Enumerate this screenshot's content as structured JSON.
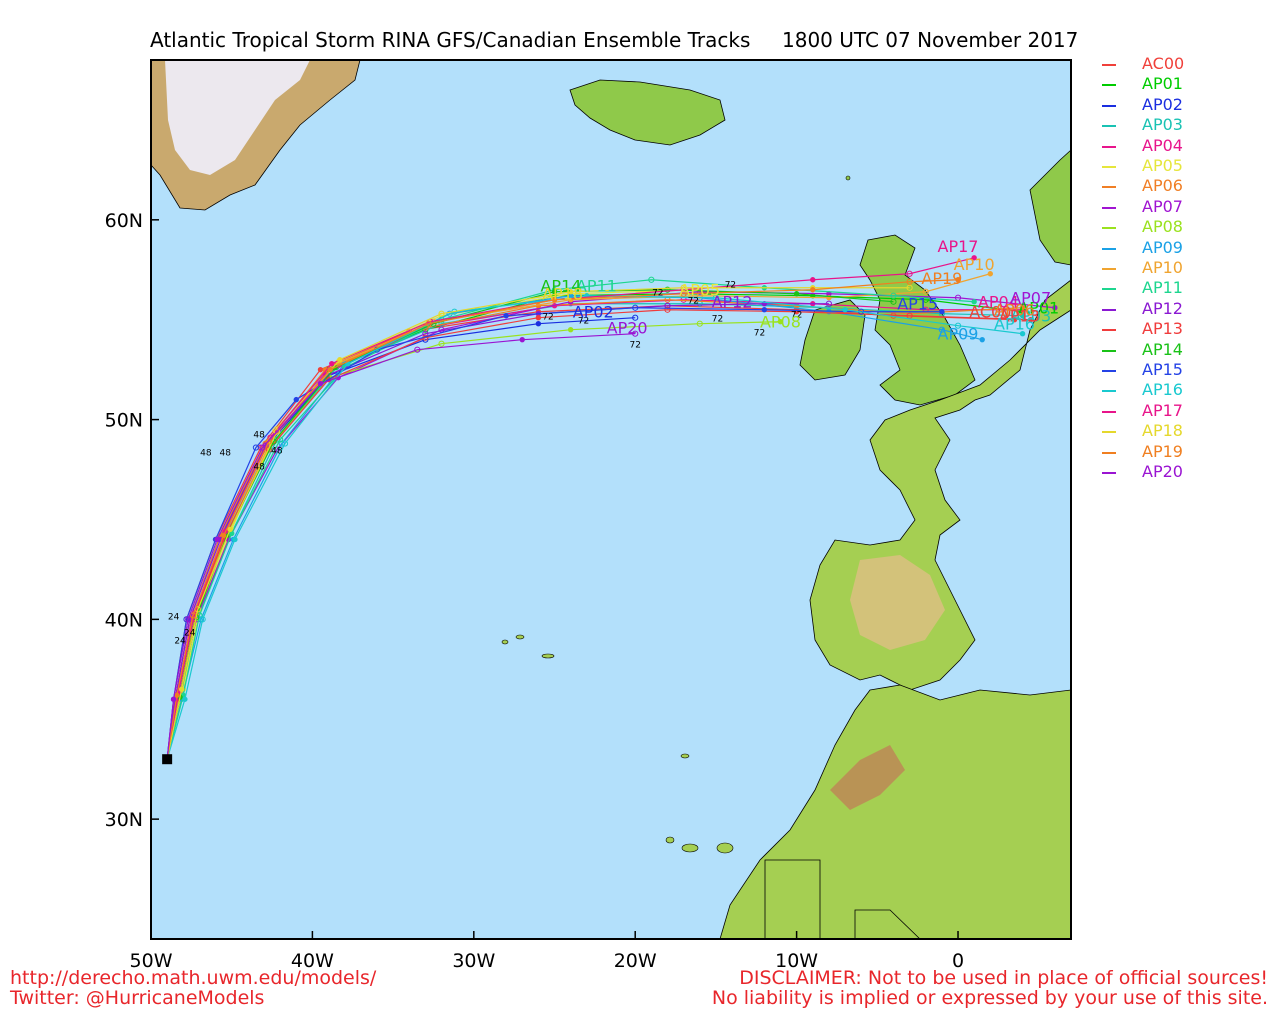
{
  "title": {
    "left": "Atlantic Tropical Storm RINA GFS/Canadian Ensemble Tracks",
    "right": "1800 UTC 07 November 2017"
  },
  "map": {
    "lon_range": [
      -50,
      7
    ],
    "lat_range": [
      24,
      68
    ],
    "ocean_color": "#b3e0fb",
    "x_ticks": [
      {
        "lon": -50,
        "label": "50W"
      },
      {
        "lon": -40,
        "label": "40W"
      },
      {
        "lon": -30,
        "label": "30W"
      },
      {
        "lon": -20,
        "label": "20W"
      },
      {
        "lon": -10,
        "label": "10W"
      },
      {
        "lon": 0,
        "label": "0"
      }
    ],
    "y_ticks": [
      {
        "lat": 30,
        "label": "30N"
      },
      {
        "lat": 40,
        "label": "40N"
      },
      {
        "lat": 50,
        "label": "50N"
      },
      {
        "lat": 60,
        "label": "60N"
      }
    ]
  },
  "tracks": [
    {
      "name": "AC00",
      "color": "#f0403a",
      "points": [
        [
          -49,
          33
        ],
        [
          -48.6,
          36
        ],
        [
          -47.8,
          40
        ],
        [
          -46,
          44
        ],
        [
          -43.2,
          48.6
        ],
        [
          -39.5,
          52.5
        ],
        [
          -34,
          54.4
        ],
        [
          -26,
          55.4
        ],
        [
          -18,
          55.7
        ],
        [
          -10,
          55.5
        ],
        [
          -4,
          55.2
        ],
        [
          3.5,
          55.0
        ]
      ],
      "label_at": [
        2,
        55.4
      ]
    },
    {
      "name": "AP01",
      "color": "#00cc00",
      "points": [
        [
          -49,
          33
        ],
        [
          -48.3,
          36
        ],
        [
          -47.3,
          40
        ],
        [
          -45.5,
          44
        ],
        [
          -42.5,
          49
        ],
        [
          -39,
          52.5
        ],
        [
          -33,
          54.5
        ],
        [
          -25,
          56.2
        ],
        [
          -17,
          56.3
        ],
        [
          -9,
          56.2
        ],
        [
          -2,
          56.0
        ],
        [
          4,
          55.4
        ]
      ],
      "label_at": [
        5,
        55.6
      ]
    },
    {
      "name": "AP02",
      "color": "#1a2ee0",
      "points": [
        [
          -49,
          33
        ],
        [
          -48.5,
          36
        ],
        [
          -47.6,
          40
        ],
        [
          -45.8,
          44
        ],
        [
          -43,
          48.5
        ],
        [
          -39,
          52.2
        ],
        [
          -33,
          54.0
        ],
        [
          -26,
          54.8
        ],
        [
          -20,
          55.1
        ]
      ],
      "label_at": [
        -22.6,
        55.4
      ]
    },
    {
      "name": "AP03",
      "color": "#19c2b3",
      "points": [
        [
          -49,
          33
        ],
        [
          -48.2,
          36
        ],
        [
          -47.1,
          40
        ],
        [
          -45.2,
          44
        ],
        [
          -42.2,
          49
        ],
        [
          -38.5,
          52.6
        ],
        [
          -32,
          54.8
        ],
        [
          -24,
          55.8
        ],
        [
          -16,
          55.8
        ],
        [
          -8,
          55.6
        ],
        [
          -1,
          55.3
        ],
        [
          4,
          55.2
        ]
      ],
      "label_at": [
        4.5,
        55.2
      ]
    },
    {
      "name": "AP04",
      "color": "#e8158c",
      "points": [
        [
          -49,
          33
        ],
        [
          -48.4,
          36
        ],
        [
          -47.5,
          40
        ],
        [
          -45.6,
          44
        ],
        [
          -42.8,
          48.7
        ],
        [
          -39.2,
          52.3
        ],
        [
          -33,
          54.6
        ],
        [
          -25,
          55.7
        ],
        [
          -17,
          56.0
        ],
        [
          -9,
          55.8
        ],
        [
          -2,
          55.5
        ],
        [
          4,
          55.5
        ]
      ],
      "label_at": [
        2.5,
        55.9
      ]
    },
    {
      "name": "AP05",
      "color": "#e6e63c",
      "points": [
        [
          -49,
          33
        ],
        [
          -48,
          36.5
        ],
        [
          -47,
          40.5
        ],
        [
          -45,
          44.5
        ],
        [
          -42.3,
          49.5
        ],
        [
          -38.4,
          52.9
        ],
        [
          -32,
          55.2
        ],
        [
          -24,
          56.3
        ],
        [
          -16,
          56.5
        ]
      ],
      "label_at": [
        -16,
        56.5
      ]
    },
    {
      "name": "AP06",
      "color": "#f07f25",
      "points": [
        [
          -49,
          33
        ],
        [
          -48.5,
          36
        ],
        [
          -47.6,
          40
        ],
        [
          -45.7,
          44.2
        ],
        [
          -42.9,
          48.8
        ],
        [
          -39.2,
          52.5
        ],
        [
          -33,
          54.6
        ],
        [
          -26,
          55.7
        ],
        [
          -18,
          56.0
        ],
        [
          -10,
          55.7
        ],
        [
          -3,
          55.3
        ],
        [
          4,
          55.6
        ]
      ],
      "label_at": [
        3.5,
        55.5
      ]
    },
    {
      "name": "AP07",
      "color": "#a014d2",
      "points": [
        [
          -49,
          33
        ],
        [
          -48.3,
          36
        ],
        [
          -47.2,
          40
        ],
        [
          -45.2,
          44
        ],
        [
          -42.2,
          48.5
        ],
        [
          -38.4,
          52.1
        ],
        [
          -32,
          54.5
        ],
        [
          -24,
          55.9
        ],
        [
          -16,
          56.4
        ],
        [
          -8,
          56.3
        ],
        [
          0,
          56.1
        ],
        [
          6,
          55.6
        ]
      ],
      "label_at": [
        4.5,
        56.1
      ]
    },
    {
      "name": "AP08",
      "color": "#9ae21e",
      "points": [
        [
          -49,
          33
        ],
        [
          -48.4,
          36
        ],
        [
          -47.4,
          40
        ],
        [
          -45.5,
          44
        ],
        [
          -42.7,
          48.6
        ],
        [
          -38.9,
          52.1
        ],
        [
          -32,
          53.8
        ],
        [
          -24,
          54.5
        ],
        [
          -16,
          54.8
        ],
        [
          -11,
          54.9
        ]
      ],
      "label_at": [
        -11,
        54.9
      ]
    },
    {
      "name": "AP09",
      "color": "#1ba1e6",
      "points": [
        [
          -49,
          33
        ],
        [
          -48.1,
          36
        ],
        [
          -46.9,
          40
        ],
        [
          -44.9,
          44
        ],
        [
          -41.9,
          48.8
        ],
        [
          -38,
          52.8
        ],
        [
          -31.5,
          55.3
        ],
        [
          -24,
          56.2
        ],
        [
          -16,
          56.1
        ],
        [
          -8,
          55.4
        ],
        [
          -1,
          54.5
        ],
        [
          1.5,
          54.0
        ]
      ],
      "label_at": [
        0.0,
        54.3
      ]
    },
    {
      "name": "AP10",
      "color": "#f0a430",
      "points": [
        [
          -49,
          33
        ],
        [
          -48.2,
          36.3
        ],
        [
          -47.2,
          40.3
        ],
        [
          -45.3,
          44.3
        ],
        [
          -42.5,
          49
        ],
        [
          -38.7,
          52.7
        ],
        [
          -32.5,
          54.9
        ],
        [
          -24,
          56.0
        ],
        [
          -16,
          56.2
        ],
        [
          -8,
          56.1
        ],
        [
          -2,
          56.4
        ],
        [
          2,
          57.3
        ]
      ],
      "label_at": [
        1.0,
        57.8
      ]
    },
    {
      "name": "AP11",
      "color": "#1dd68f",
      "points": [
        [
          -49,
          33
        ],
        [
          -48,
          36.2
        ],
        [
          -47,
          40.2
        ],
        [
          -45,
          44.3
        ],
        [
          -42,
          49
        ],
        [
          -38,
          52.6
        ],
        [
          -32,
          55.0
        ],
        [
          -25,
          56.5
        ],
        [
          -19,
          57.0
        ],
        [
          -12,
          56.6
        ],
        [
          -4,
          56.2
        ],
        [
          1,
          55.9
        ]
      ],
      "label_at": [
        -22.4,
        56.7
      ]
    },
    {
      "name": "AP12",
      "color": "#8a19d2",
      "points": [
        [
          -49,
          33
        ],
        [
          -48.5,
          36
        ],
        [
          -47.6,
          40
        ],
        [
          -45.7,
          44
        ],
        [
          -42.9,
          48.7
        ],
        [
          -39.1,
          52.2
        ],
        [
          -33,
          54.3
        ],
        [
          -26,
          55.3
        ],
        [
          -18,
          55.7
        ],
        [
          -12,
          55.8
        ],
        [
          -8,
          55.8
        ]
      ],
      "label_at": [
        -14,
        55.9
      ]
    },
    {
      "name": "AP13",
      "color": "#f03c3c",
      "points": [
        [
          -49,
          33
        ],
        [
          -48.4,
          36
        ],
        [
          -47.4,
          40
        ],
        [
          -45.5,
          44
        ],
        [
          -42.7,
          48.5
        ],
        [
          -39,
          52
        ],
        [
          -33,
          54.1
        ],
        [
          -26,
          55.1
        ],
        [
          -18,
          55.5
        ],
        [
          -10,
          55.4
        ],
        [
          -3,
          55.2
        ],
        [
          4.5,
          55.0
        ]
      ],
      "label_at": [
        3.8,
        55.2
      ]
    },
    {
      "name": "AP14",
      "color": "#19c217",
      "points": [
        [
          -49,
          33
        ],
        [
          -48.2,
          36.1
        ],
        [
          -47.2,
          40.1
        ],
        [
          -45.3,
          44.2
        ],
        [
          -42.4,
          48.9
        ],
        [
          -38.6,
          52.6
        ],
        [
          -32.5,
          54.8
        ],
        [
          -25,
          56.4
        ],
        [
          -18,
          56.5
        ],
        [
          -10,
          56.3
        ],
        [
          -4,
          55.9
        ]
      ],
      "label_at": [
        -24.6,
        56.7
      ]
    },
    {
      "name": "AP15",
      "color": "#2442e6",
      "points": [
        [
          -49,
          33
        ],
        [
          -48.6,
          36
        ],
        [
          -47.8,
          40
        ],
        [
          -46,
          44
        ],
        [
          -43.5,
          48.6
        ],
        [
          -41,
          51
        ],
        [
          -36,
          53.5
        ],
        [
          -28,
          55.2
        ],
        [
          -20,
          55.6
        ],
        [
          -12,
          55.5
        ],
        [
          -6,
          55.4
        ],
        [
          -1,
          55.4
        ]
      ],
      "label_at": [
        -2.5,
        55.8
      ]
    },
    {
      "name": "AP16",
      "color": "#19c9cf",
      "points": [
        [
          -49,
          33
        ],
        [
          -47.9,
          36
        ],
        [
          -46.8,
          40
        ],
        [
          -44.8,
          44
        ],
        [
          -41.7,
          48.8
        ],
        [
          -37.8,
          52.8
        ],
        [
          -31.2,
          55.4
        ],
        [
          -23,
          56.2
        ],
        [
          -15,
          56.1
        ],
        [
          -7,
          55.5
        ],
        [
          0,
          54.7
        ],
        [
          4,
          54.3
        ]
      ],
      "label_at": [
        3.5,
        54.8
      ]
    },
    {
      "name": "AP17",
      "color": "#e8148a",
      "points": [
        [
          -49,
          33
        ],
        [
          -48.3,
          36.3
        ],
        [
          -47.3,
          40.3
        ],
        [
          -45.4,
          44.4
        ],
        [
          -42.6,
          49.1
        ],
        [
          -38.8,
          52.8
        ],
        [
          -32.7,
          54.9
        ],
        [
          -25,
          56.0
        ],
        [
          -17,
          56.5
        ],
        [
          -9,
          57.0
        ],
        [
          -3,
          57.3
        ],
        [
          1,
          58.1
        ]
      ],
      "label_at": [
        0.0,
        58.7
      ]
    },
    {
      "name": "AP18",
      "color": "#e5d82c",
      "points": [
        [
          -49,
          33
        ],
        [
          -48.1,
          36.5
        ],
        [
          -47.1,
          40.5
        ],
        [
          -45.1,
          44.5
        ],
        [
          -42.2,
          49.4
        ],
        [
          -38.3,
          53
        ],
        [
          -32,
          55.3
        ],
        [
          -24,
          56.4
        ],
        [
          -17,
          56.6
        ],
        [
          -9,
          56.6
        ],
        [
          -3,
          56.6
        ]
      ],
      "label_at": [
        -24.5,
        56.3
      ]
    },
    {
      "name": "AP19",
      "color": "#f07f20",
      "points": [
        [
          -49,
          33
        ],
        [
          -48.4,
          36.2
        ],
        [
          -47.4,
          40.2
        ],
        [
          -45.5,
          44.2
        ],
        [
          -42.7,
          48.9
        ],
        [
          -38.9,
          52.5
        ],
        [
          -32.8,
          54.8
        ],
        [
          -25,
          56.0
        ],
        [
          -17,
          56.3
        ],
        [
          -9,
          56.5
        ],
        [
          -3,
          56.9
        ],
        [
          0,
          57.0
        ]
      ],
      "label_at": [
        -1.0,
        57.1
      ]
    },
    {
      "name": "AP20",
      "color": "#9a14d2",
      "points": [
        [
          -49,
          33
        ],
        [
          -48.6,
          36
        ],
        [
          -47.7,
          40
        ],
        [
          -45.9,
          44
        ],
        [
          -43.1,
          48.6
        ],
        [
          -39.5,
          51.8
        ],
        [
          -33.5,
          53.5
        ],
        [
          -27,
          54.0
        ],
        [
          -20,
          54.3
        ]
      ],
      "label_at": [
        -20.5,
        54.6
      ]
    }
  ],
  "hour_labels": [
    {
      "text": "24",
      "lon": -48.6,
      "lat": 40.0
    },
    {
      "text": "24",
      "lon": -47.6,
      "lat": 39.2
    },
    {
      "text": "24",
      "lon": -48.2,
      "lat": 38.8
    },
    {
      "text": "48",
      "lon": -45.4,
      "lat": 48.2
    },
    {
      "text": "48",
      "lon": -43.3,
      "lat": 49.1
    },
    {
      "text": "48",
      "lon": -42.2,
      "lat": 48.3
    },
    {
      "text": "48",
      "lon": -43.3,
      "lat": 47.5
    },
    {
      "text": "48",
      "lon": -46.6,
      "lat": 48.2
    },
    {
      "text": "72",
      "lon": -25.4,
      "lat": 55.0
    },
    {
      "text": "72",
      "lon": -20.0,
      "lat": 53.6
    },
    {
      "text": "72",
      "lon": -14.9,
      "lat": 54.9
    },
    {
      "text": "72",
      "lon": -12.3,
      "lat": 54.2
    },
    {
      "text": "72",
      "lon": -10.0,
      "lat": 55.1
    },
    {
      "text": "72",
      "lon": -18.6,
      "lat": 56.2
    },
    {
      "text": "72",
      "lon": -16.4,
      "lat": 55.8
    },
    {
      "text": "72",
      "lon": -14.1,
      "lat": 56.6
    },
    {
      "text": "72",
      "lon": -23.2,
      "lat": 54.8
    }
  ],
  "legend": [
    {
      "name": "AC00",
      "color": "#f0403a"
    },
    {
      "name": "AP01",
      "color": "#00cc00"
    },
    {
      "name": "AP02",
      "color": "#1a2ee0"
    },
    {
      "name": "AP03",
      "color": "#19c2b3"
    },
    {
      "name": "AP04",
      "color": "#e8158c"
    },
    {
      "name": "AP05",
      "color": "#e6e63c"
    },
    {
      "name": "AP06",
      "color": "#f07f25"
    },
    {
      "name": "AP07",
      "color": "#a014d2"
    },
    {
      "name": "AP08",
      "color": "#9ae21e"
    },
    {
      "name": "AP09",
      "color": "#1ba1e6"
    },
    {
      "name": "AP10",
      "color": "#f0a430"
    },
    {
      "name": "AP11",
      "color": "#1dd68f"
    },
    {
      "name": "AP12",
      "color": "#8a19d2"
    },
    {
      "name": "AP13",
      "color": "#f03c3c"
    },
    {
      "name": "AP14",
      "color": "#19c217"
    },
    {
      "name": "AP15",
      "color": "#2442e6"
    },
    {
      "name": "AP16",
      "color": "#19c9cf"
    },
    {
      "name": "AP17",
      "color": "#e8148a"
    },
    {
      "name": "AP18",
      "color": "#e5d82c"
    },
    {
      "name": "AP19",
      "color": "#f07f20"
    },
    {
      "name": "AP20",
      "color": "#9a14d2"
    }
  ],
  "footer": {
    "url": "http://derecho.math.uwm.edu/models/",
    "twitter": "Twitter: @HurricaneModels",
    "disclaimer1": "DISCLAIMER: Not to be used in place of official sources!",
    "disclaimer2": "No liability is implied or expressed by your use of this site."
  }
}
